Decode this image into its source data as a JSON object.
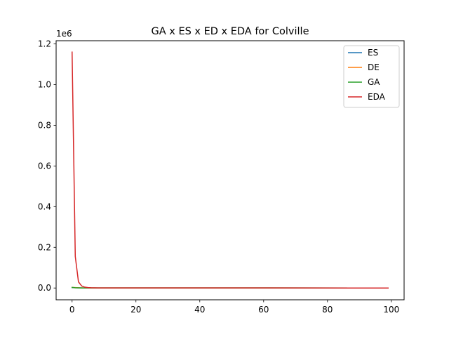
{
  "chart_data": {
    "type": "line",
    "title": "GA x ES x ED x EDA for Colville",
    "xlabel": "",
    "ylabel": "",
    "y_offset_label": "1e6",
    "xlim": [
      -5,
      104
    ],
    "ylim": [
      -0.058,
      1.2159
    ],
    "x_ticks": [
      0,
      20,
      40,
      60,
      80,
      100
    ],
    "y_ticks": [
      0.0,
      0.2,
      0.4,
      0.6,
      0.8,
      1.0,
      1.2
    ],
    "x_tick_labels": [
      "0",
      "20",
      "40",
      "60",
      "80",
      "100"
    ],
    "y_tick_labels": [
      "0.0",
      "0.2",
      "0.4",
      "0.6",
      "0.8",
      "1.0",
      "1.2"
    ],
    "grid": false,
    "legend_position": "top-right",
    "x": [
      0,
      1,
      2,
      3,
      4,
      5,
      6,
      7,
      8,
      9,
      10,
      99
    ],
    "series": [
      {
        "name": "ES",
        "color": "#1f77b4",
        "values": [
          0.002,
          0.001,
          0.0005,
          0.0003,
          0.0002,
          0.0001,
          0.0001,
          0.0001,
          0.0001,
          0.0001,
          0.0001,
          0.0
        ]
      },
      {
        "name": "DE",
        "color": "#ff7f0e",
        "values": [
          0.003,
          0.002,
          0.001,
          0.0005,
          0.0003,
          0.0002,
          0.0001,
          0.0001,
          0.0001,
          0.0001,
          0.0001,
          0.0
        ]
      },
      {
        "name": "GA",
        "color": "#2ca02c",
        "values": [
          0.003,
          0.001,
          0.0005,
          0.0003,
          0.0002,
          0.0001,
          0.0001,
          0.0001,
          0.0001,
          0.0001,
          0.0001,
          0.0
        ]
      },
      {
        "name": "EDA",
        "color": "#d62728",
        "values": [
          1.16,
          0.155,
          0.03,
          0.01,
          0.004,
          0.002,
          0.001,
          0.0005,
          0.0003,
          0.0002,
          0.0001,
          0.0
        ]
      }
    ]
  }
}
